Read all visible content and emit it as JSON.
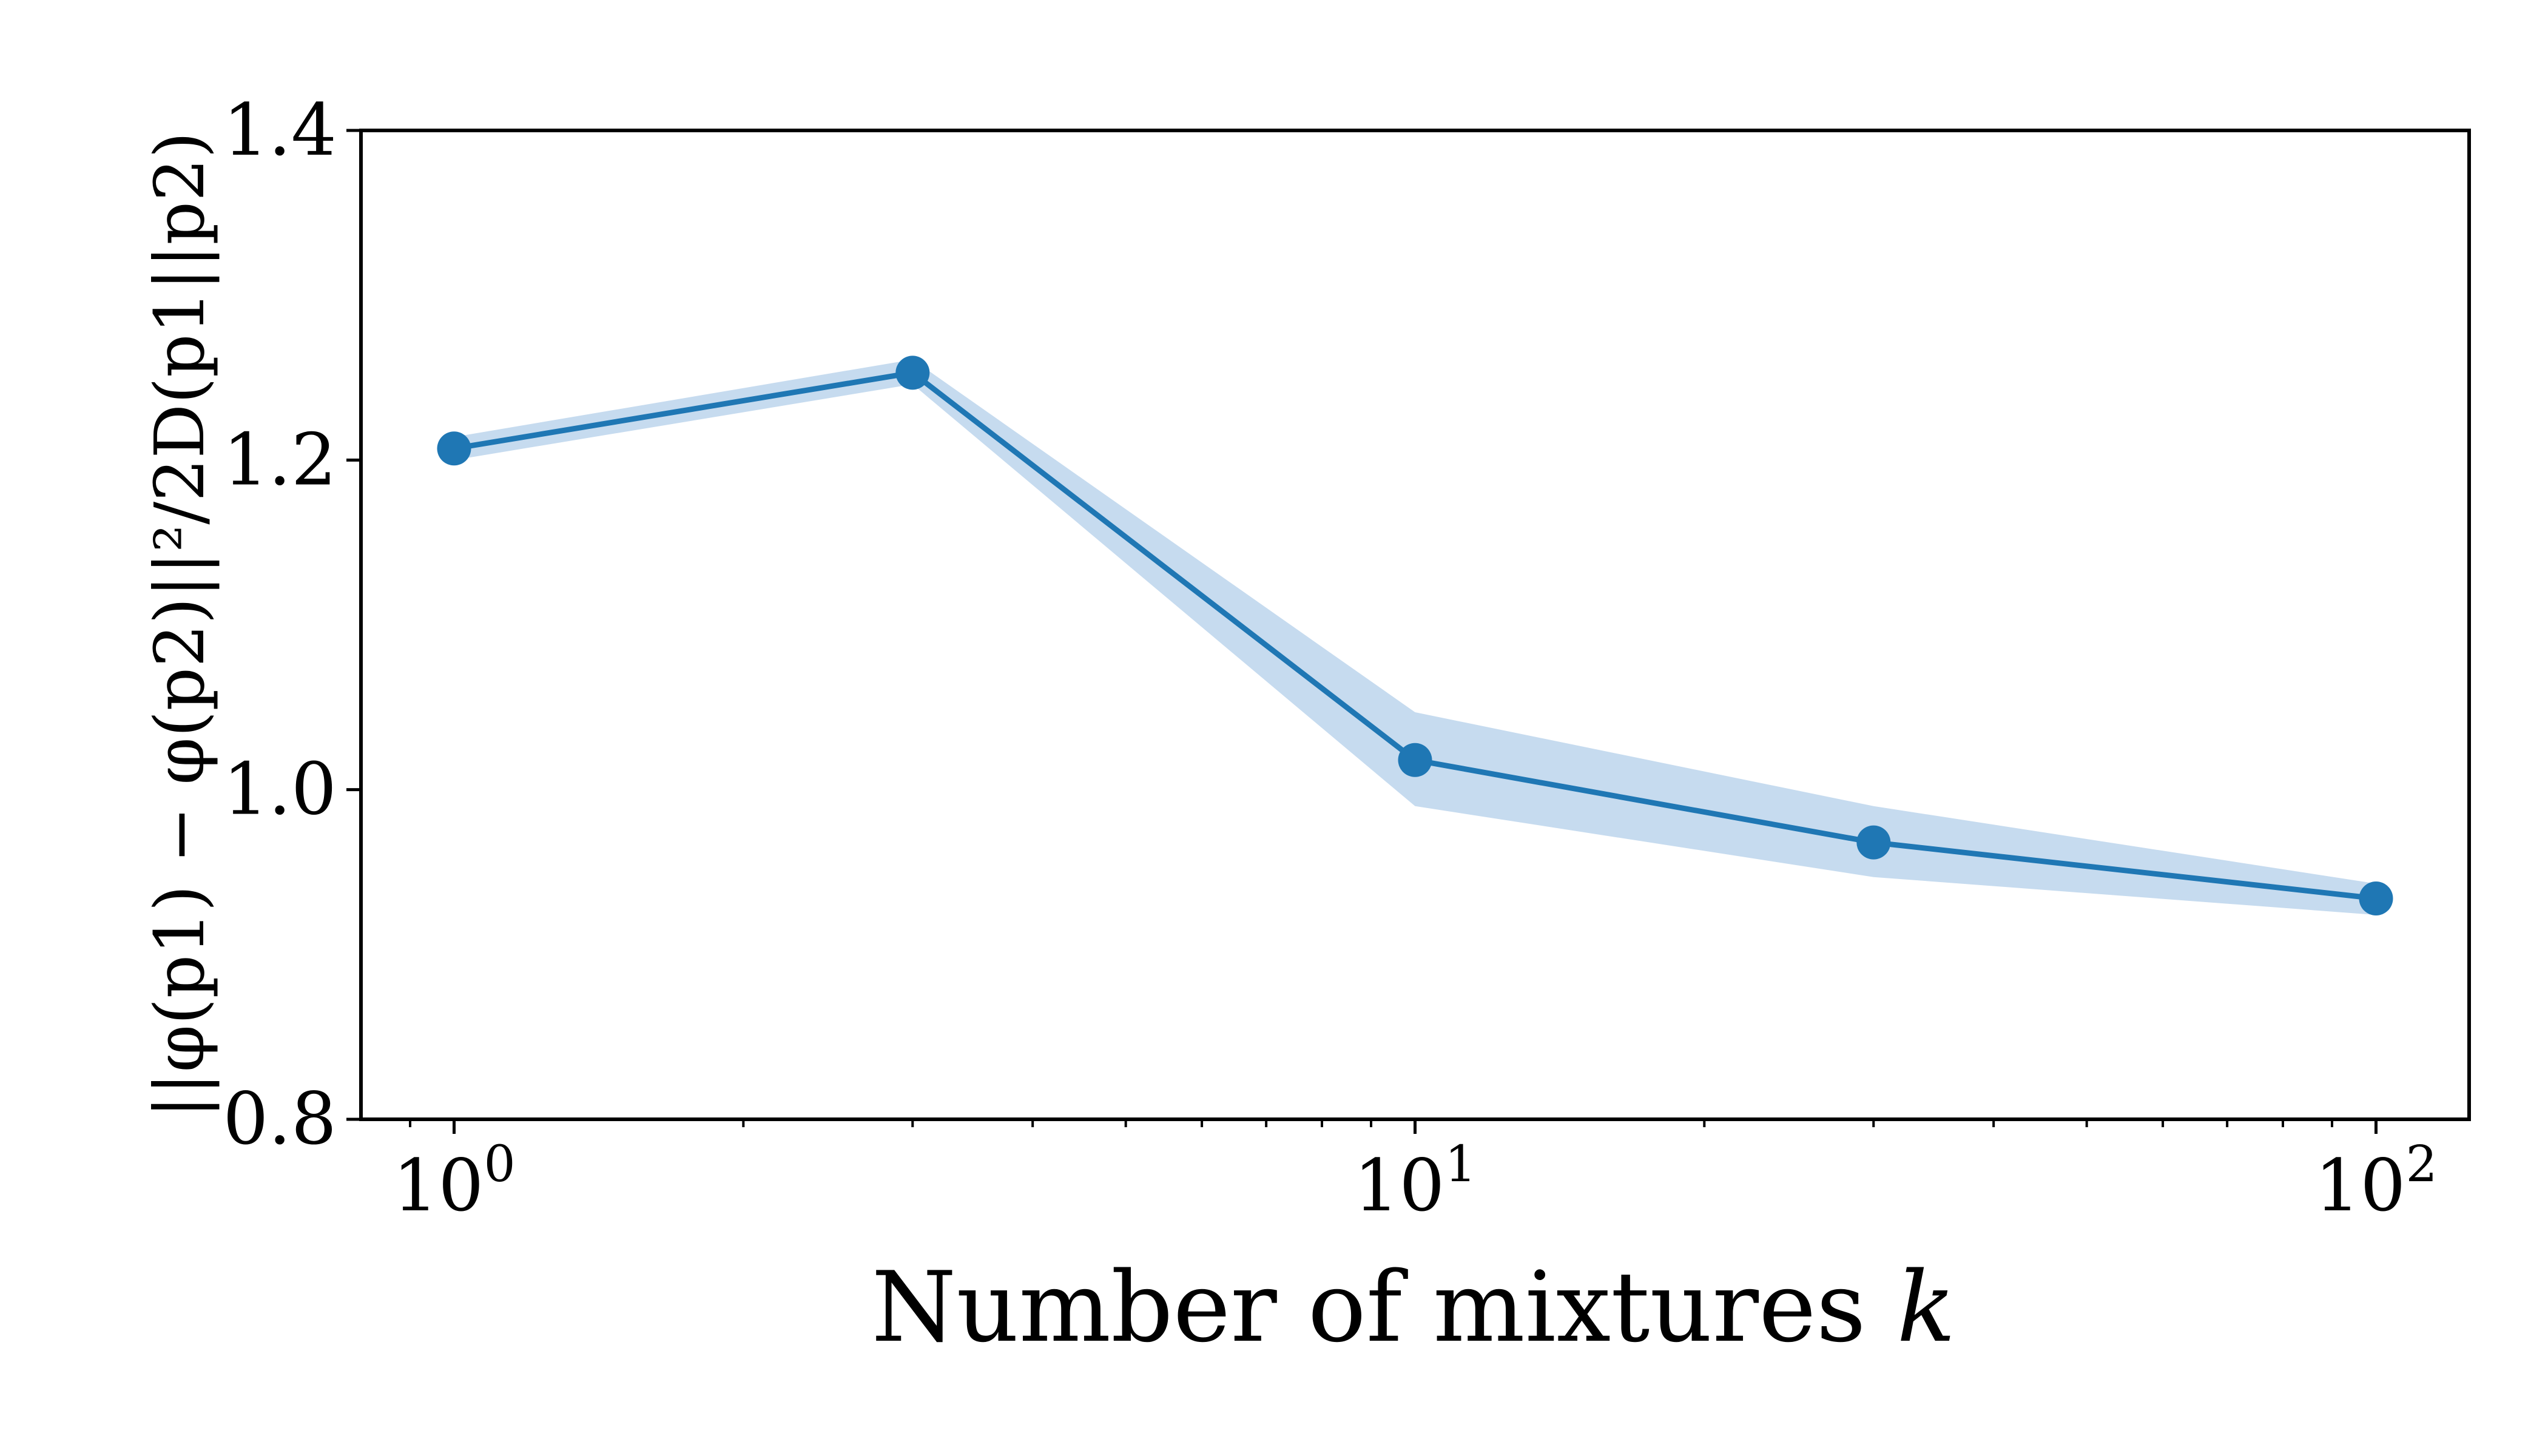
{
  "chart_data": {
    "type": "line",
    "x": [
      1,
      3,
      10,
      30,
      100
    ],
    "y": [
      1.207,
      1.253,
      1.018,
      0.968,
      0.934
    ],
    "band_lower": [
      1.2,
      1.246,
      0.99,
      0.947,
      0.924
    ],
    "band_upper": [
      1.214,
      1.261,
      1.047,
      0.99,
      0.943
    ],
    "xscale": "log",
    "xlim": [
      0.8,
      125
    ],
    "ylim": [
      0.8,
      1.4
    ],
    "xticks": [
      1,
      10,
      100
    ],
    "xtick_labels": [
      {
        "base": "10",
        "exp": "0"
      },
      {
        "base": "10",
        "exp": "1"
      },
      {
        "base": "10",
        "exp": "2"
      }
    ],
    "yticks": [
      0.8,
      1.0,
      1.2,
      1.4
    ],
    "ytick_labels": [
      "0.8",
      "1.0",
      "1.2",
      "1.4"
    ],
    "xlabel": {
      "text": "Number of mixtures",
      "var": "k"
    },
    "ylabel": "||φ(p1) − φ(p2)||²/2D(p1||p2)",
    "grid": false,
    "line_color": "#1f77b4",
    "band_color": "#c6dbef"
  }
}
